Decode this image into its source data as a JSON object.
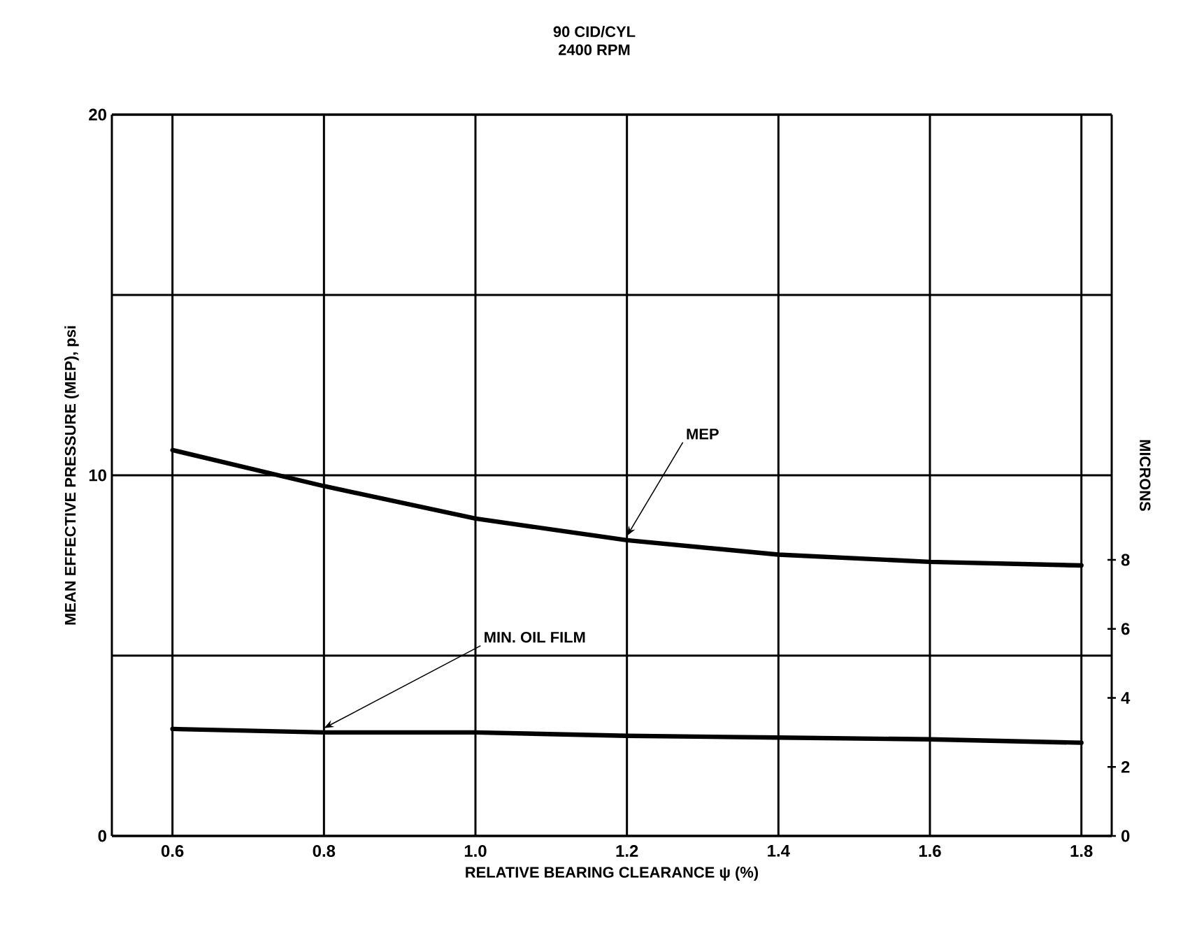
{
  "chart_data": {
    "type": "line",
    "title": "90 CID/CYL",
    "subtitle": "2400 RPM",
    "xlabel": "RELATIVE BEARING CLEARANCE ψ (%)",
    "ylabel": "MEAN EFFECTIVE PRESSURE (MEP), psi",
    "y2label": "MICRONS",
    "x": [
      0.6,
      0.8,
      1.0,
      1.2,
      1.4,
      1.6,
      1.8
    ],
    "series": [
      {
        "name": "MEP",
        "color": "#000000",
        "values": [
          10.7,
          9.7,
          8.8,
          8.2,
          7.8,
          7.6,
          7.5
        ]
      },
      {
        "name": "MIN. OIL FILM",
        "color": "#000000",
        "axis": "y2",
        "values": [
          3.1,
          3.0,
          3.0,
          2.9,
          2.85,
          2.8,
          2.7
        ]
      }
    ],
    "xlim": [
      0.52,
      1.84
    ],
    "ylim": [
      0,
      20
    ],
    "y2lim": [
      0,
      20.9
    ],
    "xticks": [
      0.6,
      0.8,
      {
        "value": 1.0,
        "label": "1.0"
      },
      1.2,
      1.4,
      1.6,
      1.8
    ],
    "yticks": [
      0,
      {
        "value": 5,
        "label": null
      },
      10,
      {
        "value": 15,
        "label": null
      },
      20
    ],
    "y2ticks": [
      0,
      2,
      4,
      6,
      8
    ],
    "grid": true,
    "marker": "none",
    "line_style": "solid"
  }
}
